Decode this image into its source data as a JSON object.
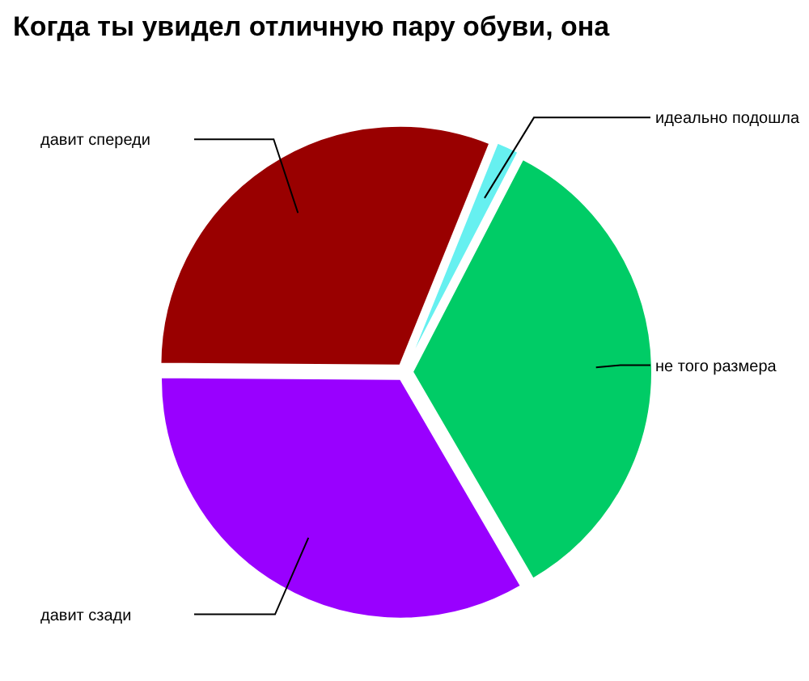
{
  "chart_data": {
    "type": "pie",
    "title": "Когда ты увидел отличную пару обуви, она",
    "categories": [
      "идеально подошла",
      "не того размера",
      "давит сзади",
      "давит спереди"
    ],
    "values": [
      1.5,
      34,
      33.5,
      31
    ],
    "colors": [
      "#66f0f0",
      "#00cc66",
      "#9900ff",
      "#990000"
    ]
  }
}
